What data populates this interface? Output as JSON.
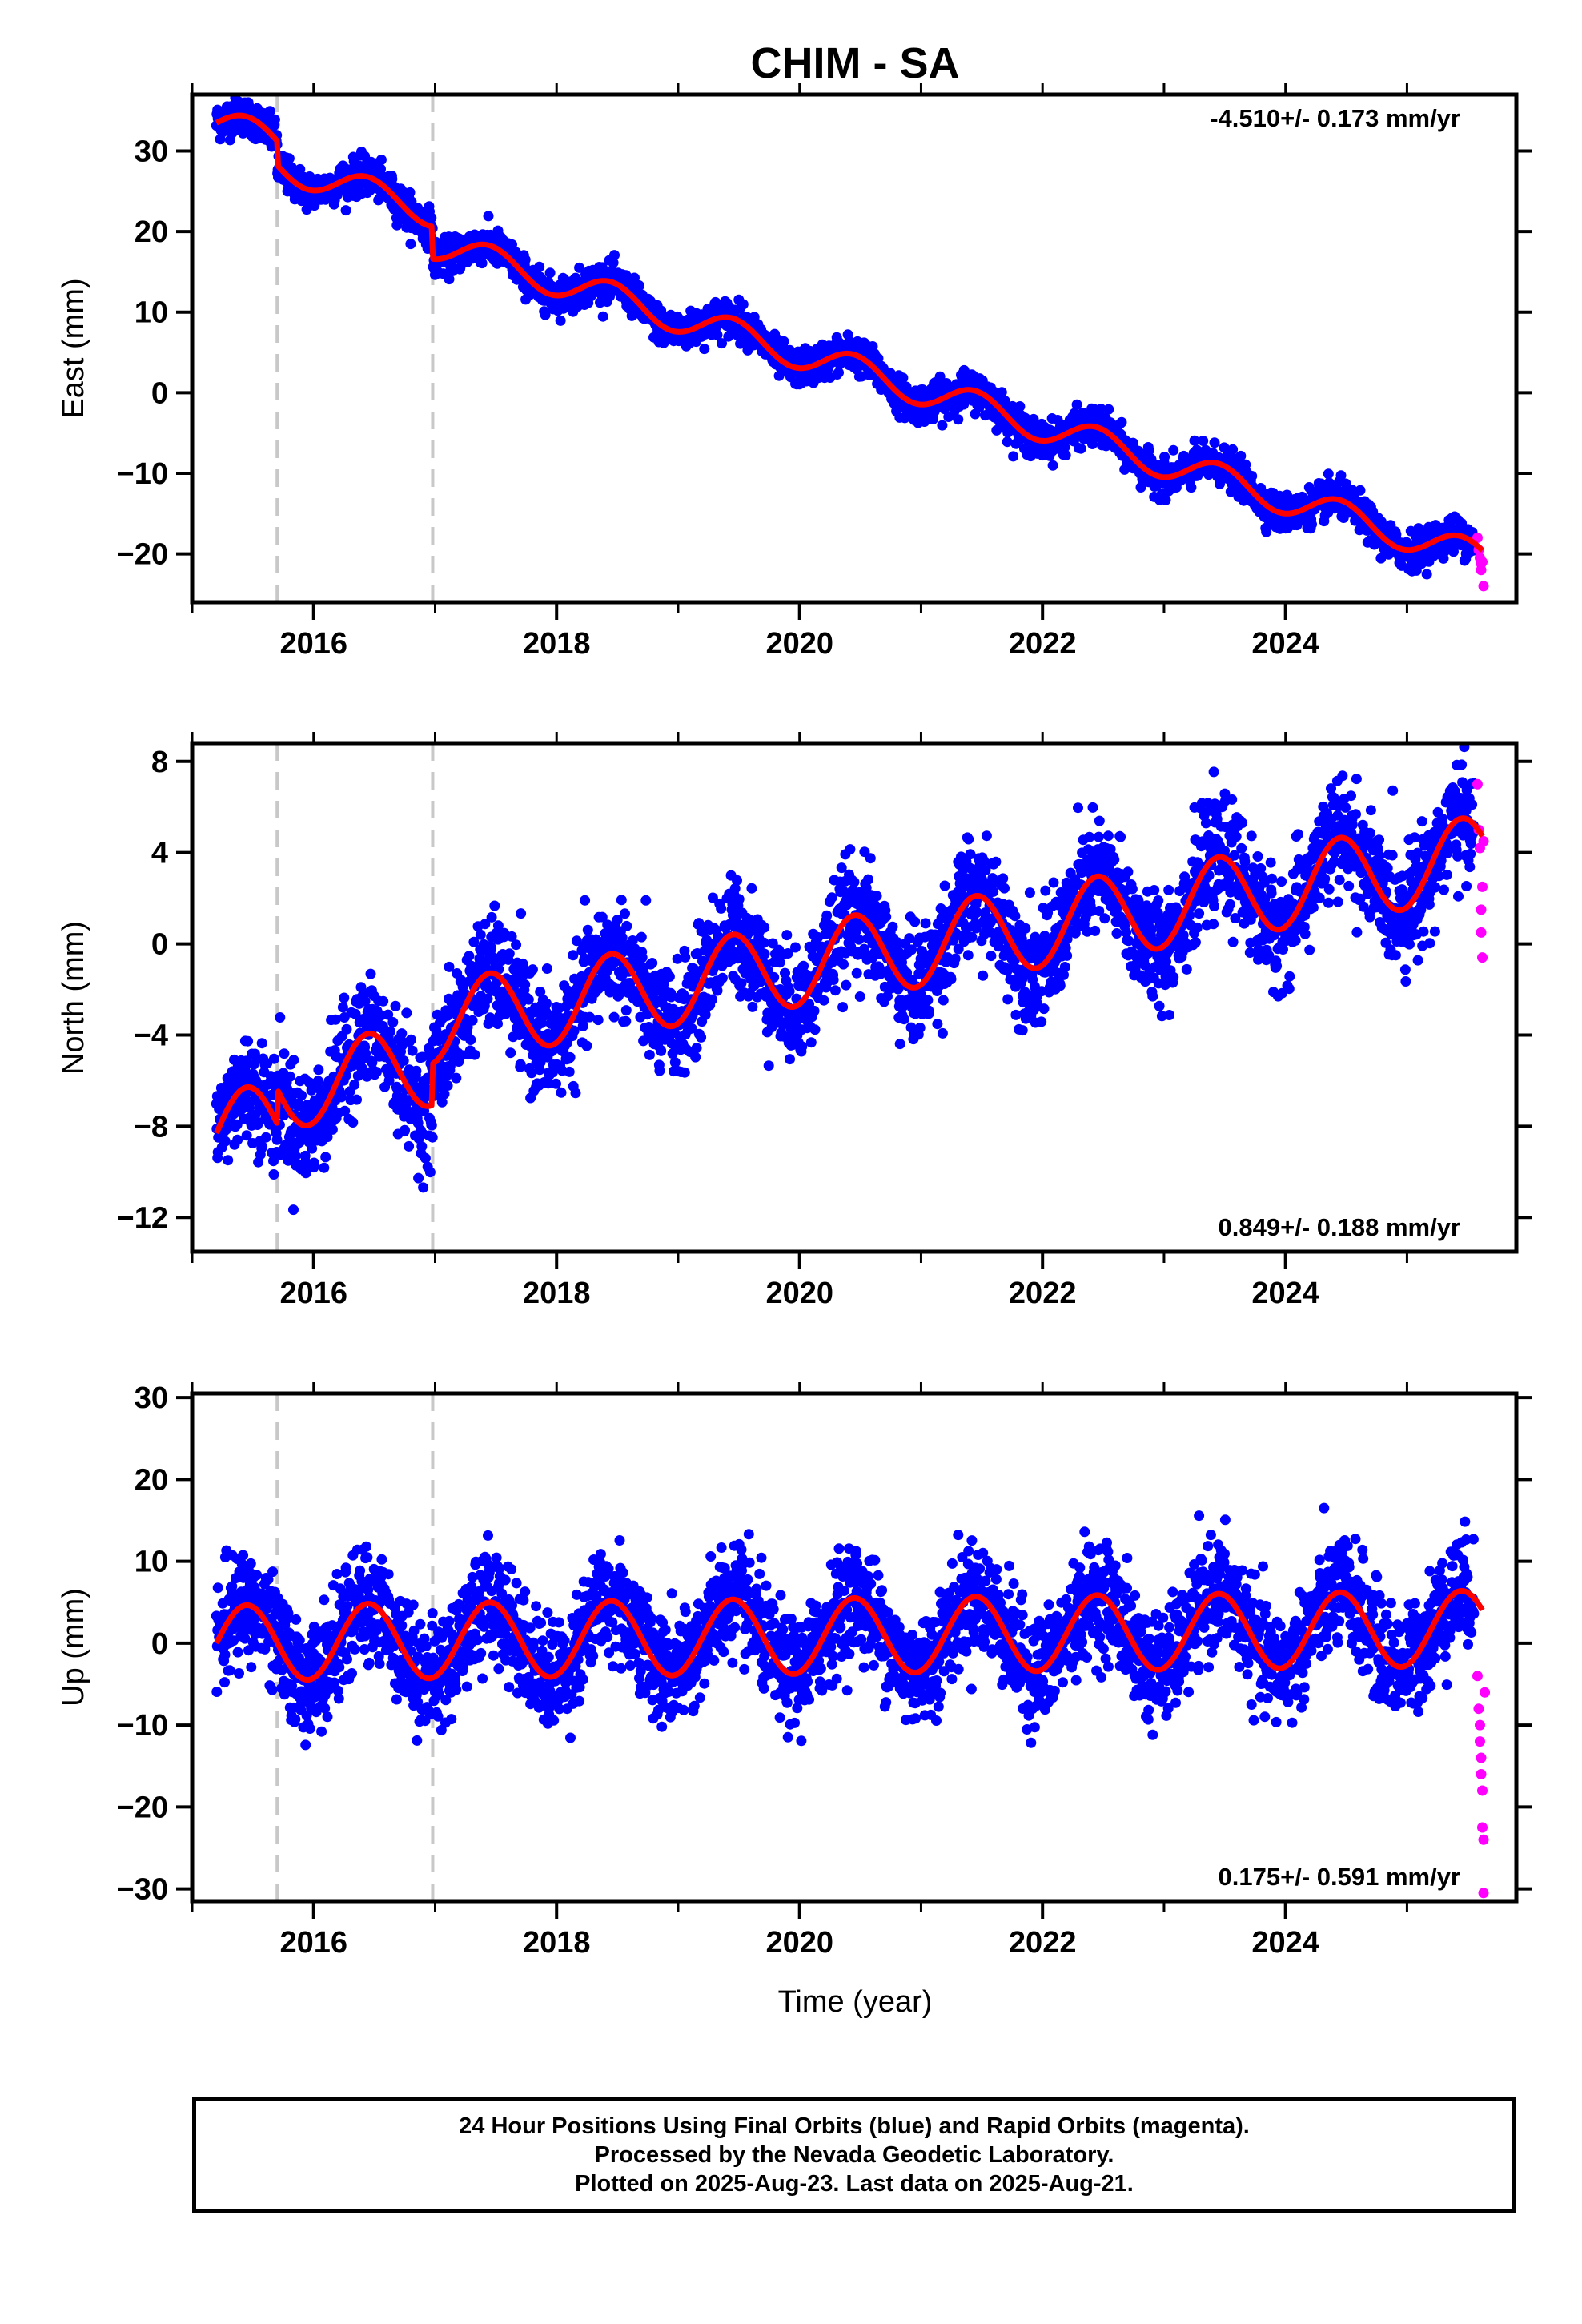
{
  "title": "CHIM - SA",
  "colors": {
    "final": "#0000ff",
    "rapid": "#ff00ff",
    "model": "#ff0000",
    "offset_line": "#c8c8c8"
  },
  "xlabel": "Time (year)",
  "footer": {
    "line1": "24 Hour Positions Using Final Orbits (blue) and Rapid Orbits (magenta).",
    "line2": "Processed by the Nevada Geodetic Laboratory.",
    "line3": "Plotted on 2025-Aug-23. Last data on 2025-Aug-21."
  },
  "chart_data": [
    {
      "type": "scatter",
      "title": "CHIM - SA",
      "ylabel": "East (mm)",
      "xlabel": "",
      "xlim": [
        2015.0,
        2025.9
      ],
      "ylim": [
        -26,
        37
      ],
      "xticks": [
        "2016",
        "2018",
        "2020",
        "2022",
        "2024"
      ],
      "yticks": [
        "30",
        "20",
        "10",
        "0",
        "−10",
        "−20"
      ],
      "ytick_values": [
        30,
        20,
        10,
        0,
        -10,
        -20
      ],
      "rate_label": "-4.510+/- 0.173 mm/yr",
      "rate_position": "top-right",
      "offset_epochs": [
        2015.7,
        2016.98
      ],
      "series": [
        {
          "role": "final",
          "x_start": 2015.2,
          "x_end": 2025.55,
          "trend": -4.51,
          "intercept_2015_2": 33.5,
          "seasonal_amp": 1.9,
          "noise": 1.1,
          "steps": [
            {
              "at": 2015.7,
              "offset": -3.0
            },
            {
              "at": 2016.98,
              "offset": -4.0
            }
          ]
        },
        {
          "role": "rapid",
          "x": [
            2025.58,
            2025.59,
            2025.6,
            2025.61,
            2025.61,
            2025.62,
            2025.63
          ],
          "y": [
            -18.0,
            -19.5,
            -20.5,
            -21.2,
            -22.0,
            -21.0,
            -24.0
          ]
        },
        {
          "role": "model",
          "x_start": 2015.2,
          "x_end": 2025.62
        }
      ]
    },
    {
      "type": "scatter",
      "ylabel": "North (mm)",
      "xlabel": "",
      "xlim": [
        2015.0,
        2025.9
      ],
      "ylim": [
        -13.5,
        8.8
      ],
      "xticks": [
        "2016",
        "2018",
        "2020",
        "2022",
        "2024"
      ],
      "yticks": [
        "8",
        "4",
        "0",
        "−4",
        "−8",
        "−12"
      ],
      "ytick_values": [
        8,
        4,
        0,
        -4,
        -8,
        -12
      ],
      "rate_label": "0.849+/- 0.188 mm/yr",
      "rate_position": "bottom-right",
      "offset_epochs": [
        2015.7,
        2016.98
      ],
      "series": [
        {
          "role": "final",
          "x_start": 2015.2,
          "x_end": 2025.55,
          "trend": 0.849,
          "intercept_2015_2": -8.3,
          "seasonal_amp": 1.8,
          "noise": 1.2,
          "steps": [
            {
              "at": 2015.7,
              "offset": 1.5
            },
            {
              "at": 2016.98,
              "offset": 1.8
            }
          ]
        },
        {
          "role": "rapid",
          "x": [
            2025.58,
            2025.59,
            2025.6,
            2025.61,
            2025.61,
            2025.62,
            2025.63,
            2025.62
          ],
          "y": [
            7.0,
            5.0,
            4.2,
            1.5,
            0.5,
            -0.6,
            4.5,
            2.5
          ]
        },
        {
          "role": "model",
          "x_start": 2015.2,
          "x_end": 2025.62
        }
      ]
    },
    {
      "type": "scatter",
      "ylabel": "Up (mm)",
      "xlabel": "Time (year)",
      "xlim": [
        2015.0,
        2025.9
      ],
      "ylim": [
        -31.5,
        30.5
      ],
      "xticks": [
        "2016",
        "2018",
        "2020",
        "2022",
        "2024"
      ],
      "yticks": [
        "30",
        "20",
        "10",
        "0",
        "−10",
        "−20",
        "−30"
      ],
      "ytick_values": [
        30,
        20,
        10,
        0,
        -10,
        -20,
        -30
      ],
      "rate_label": "0.175+/- 0.591 mm/yr",
      "rate_position": "bottom-right",
      "offset_epochs": [
        2015.7,
        2016.98
      ],
      "series": [
        {
          "role": "final",
          "x_start": 2015.2,
          "x_end": 2025.55,
          "trend": 0.175,
          "intercept_2015_2": 0.0,
          "seasonal_amp": 4.6,
          "noise": 3.3,
          "steps": []
        },
        {
          "role": "rapid",
          "x": [
            2025.58,
            2025.59,
            2025.6,
            2025.6,
            2025.61,
            2025.61,
            2025.62,
            2025.62,
            2025.63,
            2025.63,
            2025.64
          ],
          "y": [
            -4.0,
            -8.0,
            -10.0,
            -12.0,
            -14.0,
            -16.0,
            -18.0,
            -22.5,
            -24.0,
            -30.5,
            -6.0
          ]
        },
        {
          "role": "model",
          "x_start": 2015.2,
          "x_end": 2025.62
        }
      ]
    }
  ]
}
